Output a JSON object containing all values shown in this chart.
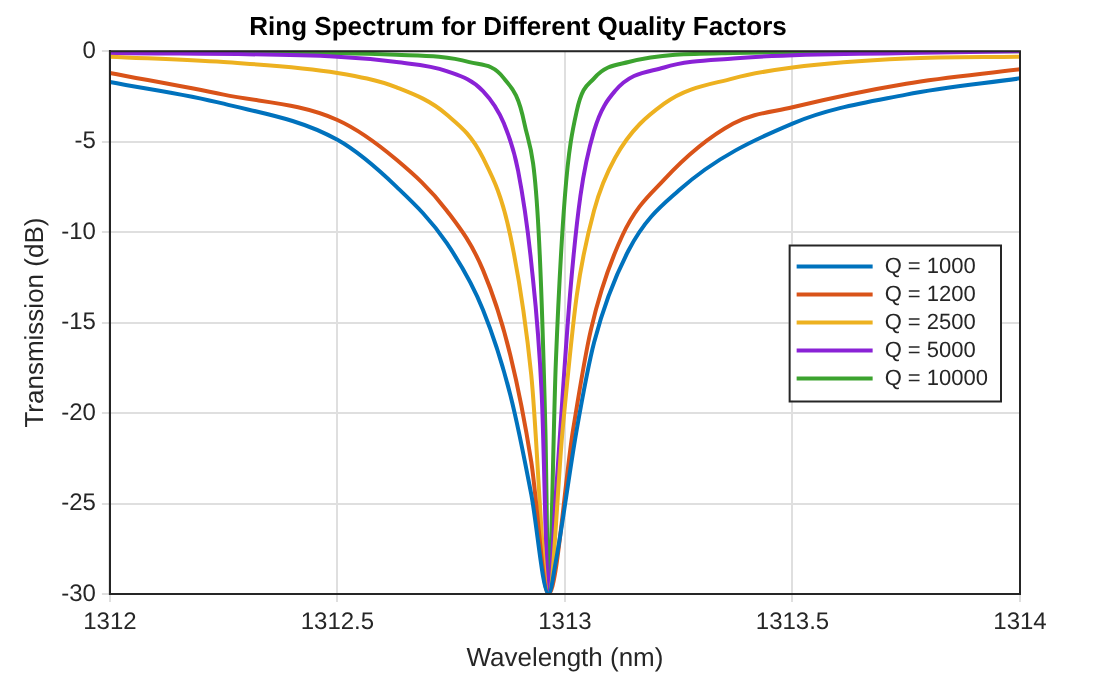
{
  "chart_data": {
    "type": "line",
    "title": "Ring Spectrum for Different Quality Factors",
    "xlabel": "Wavelength (nm)",
    "ylabel": "Transmission (dB)",
    "xlim": [
      1312,
      1314
    ],
    "xticks": [
      1312,
      1312.5,
      1313,
      1313.5,
      1314
    ],
    "ylim": [
      -30,
      0
    ],
    "yticks": [
      -30,
      -25,
      -20,
      -15,
      -10,
      -5,
      0
    ],
    "grid": true,
    "legend": "right",
    "marker": "none",
    "line_style": "solid",
    "series": [
      {
        "name": "Q = 1000",
        "color": "#0072bd",
        "x": [
          1312,
          1312.25,
          1312.5,
          1312.63,
          1312.74,
          1312.82,
          1312.88,
          1312.926,
          1312.964,
          1312.98,
          1313.026,
          1313.064,
          1313.14,
          1313.25,
          1313.5,
          1313.75,
          1314
        ],
        "values": [
          -1.7,
          -2.9,
          -4.9,
          -7.5,
          -10.6,
          -14.3,
          -19,
          -24.5,
          -30,
          -28.2,
          -20.9,
          -16.1,
          -11,
          -7.7,
          -4,
          -2.4,
          -1.5
        ]
      },
      {
        "name": "Q = 1200",
        "color": "#d95319",
        "x": [
          1312,
          1312.25,
          1312.5,
          1312.63,
          1312.74,
          1312.82,
          1312.88,
          1312.926,
          1312.964,
          1313.018,
          1313.057,
          1313.126,
          1313.218,
          1313.37,
          1313.5,
          1313.75,
          1314
        ],
        "values": [
          -1.2,
          -2.4,
          -3.8,
          -6,
          -8.8,
          -12.1,
          -16.8,
          -22.7,
          -30,
          -20.9,
          -15.4,
          -10.2,
          -7.1,
          -4,
          -3.1,
          -1.8,
          -1
        ]
      },
      {
        "name": "Q = 2500",
        "color": "#edb120",
        "x": [
          1312,
          1312.25,
          1312.5,
          1312.63,
          1312.74,
          1312.82,
          1312.88,
          1312.926,
          1312.964,
          1312.995,
          1313.026,
          1313.064,
          1313.11,
          1313.218,
          1313.37,
          1313.5,
          1313.75,
          1314
        ],
        "values": [
          -0.3,
          -0.6,
          -1.2,
          -2,
          -3.5,
          -5.9,
          -10.2,
          -17.9,
          -30,
          -20.9,
          -13.5,
          -8.8,
          -5.9,
          -2.9,
          -1.5,
          -0.9,
          -0.4,
          -0.3
        ]
      },
      {
        "name": "Q = 5000",
        "color": "#8a22d6",
        "x": [
          1312,
          1312.5,
          1312.63,
          1312.74,
          1312.82,
          1312.866,
          1312.897,
          1312.926,
          1312.949,
          1312.964,
          1312.98,
          1313.011,
          1313.034,
          1313.064,
          1313.11,
          1313.218,
          1313.37,
          1313.75,
          1314
        ],
        "values": [
          -0.1,
          -0.3,
          -0.6,
          -1.1,
          -2.2,
          -4,
          -6.6,
          -11.7,
          -19,
          -30,
          -24.5,
          -13.5,
          -8,
          -4.4,
          -2.2,
          -0.9,
          -0.4,
          -0.1,
          0
        ]
      },
      {
        "name": "Q = 10000",
        "color": "#3ca32f",
        "x": [
          1312,
          1312.63,
          1312.79,
          1312.866,
          1312.911,
          1312.942,
          1312.957,
          1312.964,
          1312.98,
          1313,
          1313.026,
          1313.064,
          1313.14,
          1313.37,
          1314
        ],
        "values": [
          0,
          -0.2,
          -0.6,
          -1.5,
          -4,
          -9.9,
          -20.9,
          -30,
          -17.2,
          -8,
          -3.3,
          -1.5,
          -0.6,
          -0.1,
          0
        ]
      }
    ]
  }
}
